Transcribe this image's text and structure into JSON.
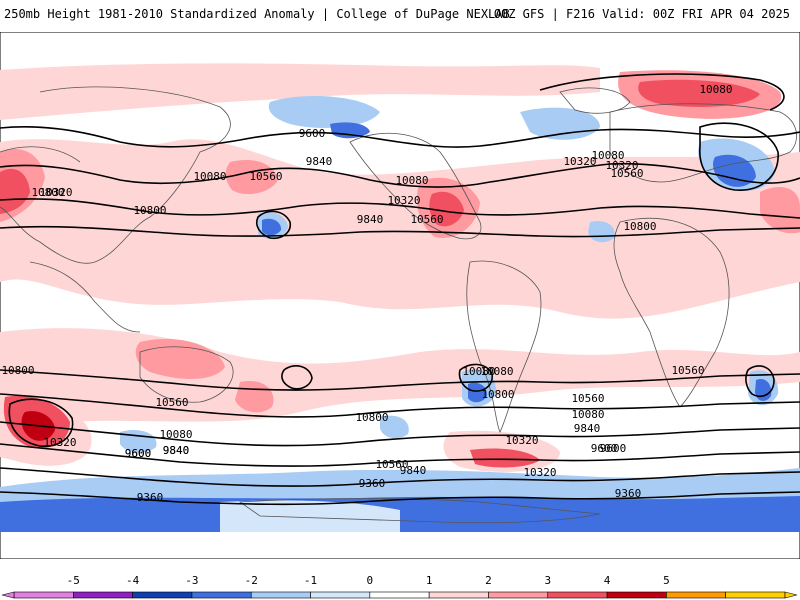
{
  "header": {
    "left": "250mb Height 1981-2010 Standardized Anomaly | College of DuPage NEXLAB",
    "right": "00Z GFS | F216 Valid: 00Z FRI APR 04 2025"
  },
  "contour_labels": [
    "9600",
    "9840",
    "10080",
    "10560",
    "10320",
    "10800",
    "9840",
    "10080",
    "10320",
    "10560",
    "10800",
    "10080",
    "10320",
    "10560",
    "10800",
    "10080",
    "10320",
    "10560",
    "10800",
    "10080",
    "10320",
    "9600",
    "9840",
    "10560",
    "10800",
    "10080",
    "10320",
    "9840",
    "9600",
    "9360",
    "9360",
    "9360",
    "10560",
    "10080",
    "9840",
    "9600",
    "10320",
    "10080",
    "9840",
    "9600",
    "10800",
    "10560"
  ],
  "colorbar": {
    "ticks": [
      "-5",
      "-4",
      "-3",
      "-2",
      "-1",
      "0",
      "1",
      "2",
      "3",
      "4",
      "5"
    ],
    "colors": [
      "#e080e0",
      "#9020c0",
      "#1040b0",
      "#4070e0",
      "#a8ccf4",
      "#d4e6fa",
      "#ffffff",
      "#ffd6d6",
      "#ff9aa0",
      "#f05060",
      "#c00010",
      "#ff9a00",
      "#ffd000"
    ]
  }
}
